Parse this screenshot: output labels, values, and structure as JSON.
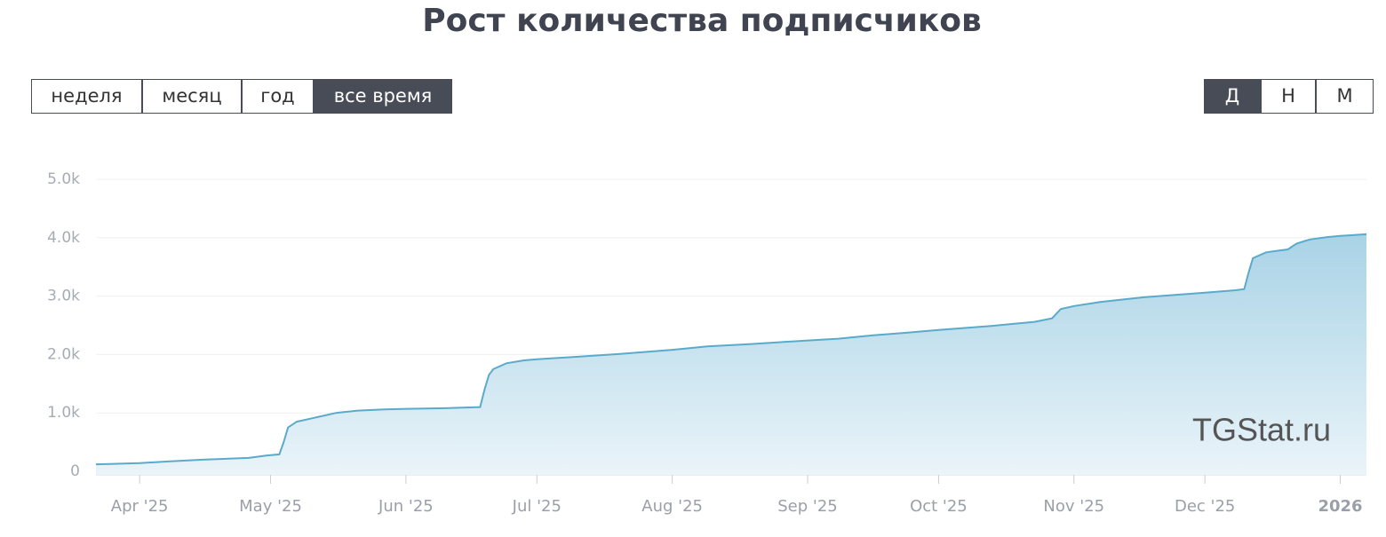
{
  "controls": {
    "period": [
      "неделя",
      "месяц",
      "год",
      "все время"
    ],
    "period_active": 3,
    "scale": [
      "Д",
      "Н",
      "М"
    ],
    "scale_active": 0
  },
  "chart_data": {
    "type": "area",
    "title": "Рост количества подписчиков",
    "watermark": "TGStat.ru",
    "x": [
      0,
      10,
      17,
      25,
      35,
      39,
      42,
      43,
      44,
      46,
      49,
      52,
      55,
      60,
      66,
      71,
      80,
      88,
      89,
      90,
      91,
      94,
      98,
      101,
      110,
      120,
      132,
      140,
      150,
      163,
      170,
      178,
      185,
      193,
      205,
      215,
      219,
      221,
      224,
      230,
      240,
      254,
      261,
      263,
      264,
      265,
      268,
      271,
      273,
      275,
      278,
      282,
      285,
      291
    ],
    "series": [
      {
        "color": "#5aaacb",
        "values": [
          120,
          140,
          170,
          200,
          230,
          270,
          290,
          500,
          750,
          850,
          900,
          950,
          1000,
          1040,
          1060,
          1070,
          1080,
          1100,
          1400,
          1650,
          1750,
          1850,
          1900,
          1920,
          1960,
          2010,
          2080,
          2140,
          2180,
          2240,
          2270,
          2330,
          2370,
          2420,
          2490,
          2560,
          2620,
          2780,
          2830,
          2900,
          2980,
          3060,
          3100,
          3120,
          3400,
          3650,
          3750,
          3780,
          3800,
          3900,
          3970,
          4010,
          4030,
          4060
        ]
      }
    ],
    "xlim": [
      0,
      291
    ],
    "xticks": [
      {
        "value": 10,
        "label": "Apr '25"
      },
      {
        "value": 40,
        "label": "May '25"
      },
      {
        "value": 71,
        "label": "Jun '25"
      },
      {
        "value": 101,
        "label": "Jul '25"
      },
      {
        "value": 132,
        "label": "Aug '25"
      },
      {
        "value": 163,
        "label": "Sep '25"
      },
      {
        "value": 193,
        "label": "Oct '25"
      },
      {
        "value": 224,
        "label": "Nov '25"
      },
      {
        "value": 254,
        "label": "Dec '25"
      },
      {
        "value": 285,
        "label": "2026"
      }
    ],
    "ylim": [
      0,
      5000
    ],
    "yticks": [
      0,
      {
        "value": 1000,
        "label": "1.0k"
      },
      {
        "value": 2000,
        "label": "2.0k"
      },
      {
        "value": 3000,
        "label": "3.0k"
      },
      {
        "value": 4000,
        "label": "4.0k"
      },
      {
        "value": 5000,
        "label": "5.0k"
      }
    ],
    "grid": true
  }
}
